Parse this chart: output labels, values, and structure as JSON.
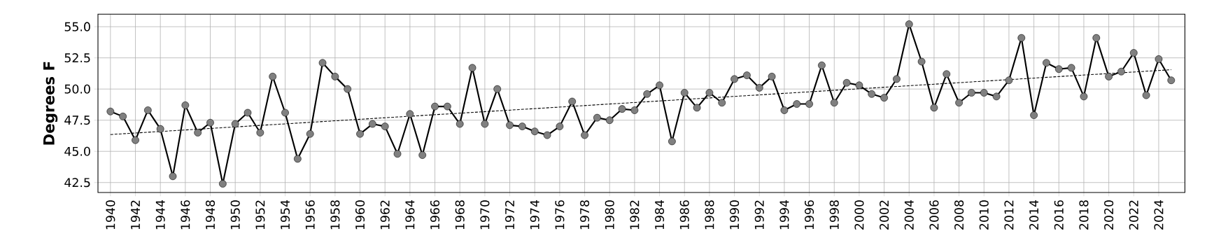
{
  "chart_data": {
    "type": "line",
    "ylabel": "Degrees F",
    "x": [
      1940,
      1941,
      1942,
      1943,
      1944,
      1945,
      1946,
      1947,
      1948,
      1949,
      1950,
      1951,
      1952,
      1953,
      1954,
      1955,
      1956,
      1957,
      1958,
      1959,
      1960,
      1961,
      1962,
      1963,
      1964,
      1965,
      1966,
      1967,
      1968,
      1969,
      1970,
      1971,
      1972,
      1973,
      1974,
      1975,
      1976,
      1977,
      1978,
      1979,
      1980,
      1981,
      1982,
      1983,
      1984,
      1985,
      1986,
      1987,
      1988,
      1989,
      1990,
      1991,
      1992,
      1993,
      1994,
      1995,
      1996,
      1997,
      1998,
      1999,
      2000,
      2001,
      2002,
      2003,
      2004,
      2005,
      2006,
      2007,
      2008,
      2009,
      2010,
      2011,
      2012,
      2013,
      2014,
      2015,
      2016,
      2017,
      2018,
      2019,
      2020,
      2021,
      2022,
      2023,
      2024,
      2025
    ],
    "series": [
      {
        "color": "#000000",
        "marker": "circle",
        "line_style": "solid",
        "values": [
          48.2,
          47.8,
          45.9,
          48.3,
          46.8,
          43.0,
          48.7,
          46.5,
          47.3,
          42.4,
          47.2,
          48.1,
          46.5,
          51.0,
          48.1,
          44.4,
          46.4,
          52.1,
          51.0,
          50.0,
          46.4,
          47.2,
          47.0,
          44.8,
          48.0,
          44.7,
          48.6,
          48.6,
          47.2,
          51.7,
          47.2,
          50.0,
          47.1,
          47.0,
          46.6,
          46.3,
          47.0,
          49.0,
          46.3,
          47.7,
          47.5,
          48.4,
          48.3,
          49.6,
          50.3,
          45.8,
          49.7,
          48.5,
          49.7,
          48.9,
          50.8,
          51.1,
          50.1,
          51.0,
          48.3,
          48.8,
          48.8,
          51.9,
          48.9,
          50.5,
          50.3,
          49.6,
          49.3,
          50.8,
          55.2,
          52.2,
          48.5,
          51.2,
          48.9,
          49.7,
          49.7,
          49.4,
          50.7,
          54.1,
          47.9,
          52.1,
          51.6,
          51.7,
          49.4,
          54.1,
          51.0,
          51.4,
          52.9,
          49.5,
          52.4,
          50.7
        ]
      },
      {
        "type": "line",
        "color": "#000000",
        "marker": "none",
        "line_style": "dashed",
        "x": [
          1940,
          2025
        ],
        "values": [
          46.35,
          51.55
        ]
      }
    ],
    "xlim": [
      1939,
      2026.1
    ],
    "ylim": [
      41.7,
      56.0
    ],
    "xticks": [
      1940,
      1942,
      1944,
      1946,
      1948,
      1950,
      1952,
      1954,
      1956,
      1958,
      1960,
      1962,
      1964,
      1966,
      1968,
      1970,
      1972,
      1974,
      1976,
      1978,
      1980,
      1982,
      1984,
      1986,
      1988,
      1990,
      1992,
      1994,
      1996,
      1998,
      2000,
      2002,
      2004,
      2006,
      2008,
      2010,
      2012,
      2014,
      2016,
      2018,
      2020,
      2022,
      2024
    ],
    "yticks": [
      {
        "value": 42.5,
        "label": "42.5"
      },
      {
        "value": 45,
        "label": "45.0"
      },
      {
        "value": 47.5,
        "label": "47.5"
      },
      {
        "value": 50,
        "label": "50.0"
      },
      {
        "value": 52.5,
        "label": "52.5"
      },
      {
        "value": 55,
        "label": "55.0"
      }
    ],
    "grid": true
  }
}
